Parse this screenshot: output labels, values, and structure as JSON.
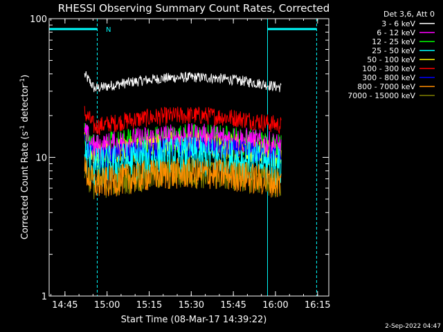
{
  "chart_data": {
    "type": "line",
    "title": "RHESSI Observing Summary Count Rates, Corrected",
    "xlabel": "Start Time (08-Mar-17 14:39:22)",
    "ylabel_main": "Corrected Count Rate (s",
    "ylabel_sup": "-1",
    "ylabel_mid": " detector",
    "ylabel_sup2": "-1",
    "ylabel_end": ")",
    "yscale": "log",
    "ylim": [
      1,
      100
    ],
    "xlim": [
      "14:39:22",
      "16:19:00"
    ],
    "x_ticks": [
      "14:45",
      "15:00",
      "15:15",
      "15:30",
      "15:45",
      "16:00",
      "16:15"
    ],
    "y_ticks": [
      "1",
      "10",
      "100"
    ],
    "legend_header": "Det 3,6, Att 0",
    "legend_position": "top-right",
    "data_start": "14:52:00",
    "data_end": "16:02:00",
    "series": [
      {
        "name": "3 - 6 keV",
        "color": "#ffffff",
        "level": 32,
        "noise": 0.04
      },
      {
        "name": "6 - 12 keV",
        "color": "#ff00ff",
        "level": 12,
        "noise": 0.1
      },
      {
        "name": "12 - 25 keV",
        "color": "#00ff00",
        "level": 11.5,
        "noise": 0.12
      },
      {
        "name": "25 - 50 keV",
        "color": "#00ffff",
        "level": 8.5,
        "noise": 0.16
      },
      {
        "name": "50 - 100 keV",
        "color": "#ffff00",
        "level": 10.5,
        "noise": 0.1
      },
      {
        "name": "100 - 300 keV",
        "color": "#ff0000",
        "level": 17,
        "noise": 0.07
      },
      {
        "name": "300 - 800 keV",
        "color": "#0000ff",
        "level": 10,
        "noise": 0.08
      },
      {
        "name": "800 - 7000 keV",
        "color": "#ff8c00",
        "level": 6.5,
        "noise": 0.12
      },
      {
        "name": "7000 - 15000 keV",
        "color": "#808000",
        "level": 6.5,
        "noise": 0.12
      }
    ],
    "flag_label": "N",
    "night_intervals": [
      [
        "14:39:22",
        "14:56:30"
      ],
      [
        "15:57:10",
        "16:14:40"
      ]
    ],
    "footer_date": "2-Sep-2022 04:47"
  }
}
